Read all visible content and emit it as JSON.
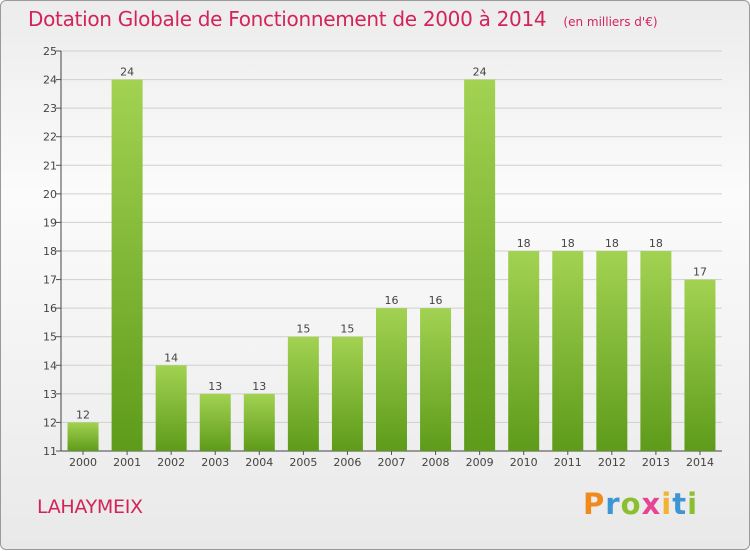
{
  "title": "Dotation Globale de Fonctionnement de 2000 à 2014",
  "subtitle": "(en milliers d'€)",
  "commune": "LAHAYMEIX",
  "logo": {
    "p": "P",
    "r": "r",
    "o": "o",
    "x": "x",
    "i1": "i",
    "t": "t",
    "i2": "i"
  },
  "colors": {
    "title": "#d2245a",
    "bar_top": "#a3d252",
    "bar_bottom": "#5e9b1a"
  },
  "chart_data": {
    "type": "bar",
    "categories": [
      "2000",
      "2001",
      "2002",
      "2003",
      "2004",
      "2005",
      "2006",
      "2007",
      "2008",
      "2009",
      "2010",
      "2011",
      "2012",
      "2013",
      "2014"
    ],
    "values": [
      12,
      24,
      14,
      13,
      13,
      15,
      15,
      16,
      16,
      24,
      18,
      18,
      18,
      18,
      17
    ],
    "ylim": [
      11,
      25
    ],
    "yticks": [
      11,
      12,
      13,
      14,
      15,
      16,
      17,
      18,
      19,
      20,
      21,
      22,
      23,
      24,
      25
    ],
    "grid": true,
    "xlabel": "",
    "ylabel": ""
  }
}
